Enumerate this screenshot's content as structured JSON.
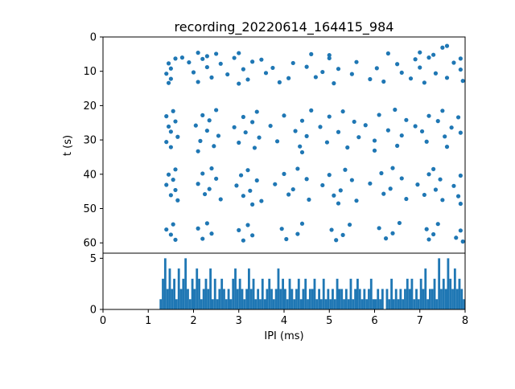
{
  "chart_data": {
    "type": "scatter+histogram",
    "title": "recording_20220614_164415_984",
    "xlabel": "IPI (ms)",
    "xlim": [
      0,
      8
    ],
    "xticks": [
      0,
      1,
      2,
      3,
      4,
      5,
      6,
      7,
      8
    ],
    "point_color": "#1f77b4",
    "axis_color": "#000000",
    "legend": "none",
    "grid": false,
    "scatter": {
      "type": "scatter",
      "ylabel": "t (s)",
      "y_axis_inverted": true,
      "ylim_top_to_bottom": [
        0,
        63
      ],
      "yticks": [
        0,
        10,
        20,
        30,
        40,
        50,
        60
      ],
      "points": [
        [
          7.6,
          2.6
        ],
        [
          7.0,
          4.5
        ],
        [
          7.3,
          5.2
        ],
        [
          5.0,
          5.3
        ],
        [
          2.3,
          5.6
        ],
        [
          2.1,
          4.6
        ],
        [
          2.5,
          4.9
        ],
        [
          3.0,
          4.7
        ],
        [
          4.6,
          5.0
        ],
        [
          6.3,
          4.8
        ],
        [
          7.5,
          3.1
        ],
        [
          1.6,
          6.3
        ],
        [
          1.75,
          6.0
        ],
        [
          2.2,
          6.4
        ],
        [
          2.9,
          6.1
        ],
        [
          3.5,
          6.6
        ],
        [
          5.0,
          6.2
        ],
        [
          6.9,
          6.5
        ],
        [
          7.2,
          6.0
        ],
        [
          7.9,
          6.3
        ],
        [
          1.45,
          7.7
        ],
        [
          1.9,
          7.4
        ],
        [
          2.6,
          7.8
        ],
        [
          3.3,
          7.2
        ],
        [
          4.2,
          7.6
        ],
        [
          5.6,
          7.3
        ],
        [
          6.5,
          7.9
        ],
        [
          7.75,
          7.5
        ],
        [
          1.5,
          9.2
        ],
        [
          2.3,
          8.8
        ],
        [
          3.1,
          9.4
        ],
        [
          3.75,
          9.0
        ],
        [
          4.5,
          8.7
        ],
        [
          5.2,
          9.3
        ],
        [
          6.05,
          9.1
        ],
        [
          7.0,
          8.9
        ],
        [
          7.9,
          9.5
        ],
        [
          1.4,
          10.7
        ],
        [
          2.0,
          10.3
        ],
        [
          2.75,
          10.9
        ],
        [
          3.6,
          10.5
        ],
        [
          4.85,
          10.2
        ],
        [
          5.5,
          10.8
        ],
        [
          6.6,
          10.4
        ],
        [
          7.35,
          10.6
        ],
        [
          1.5,
          12.2
        ],
        [
          2.4,
          11.8
        ],
        [
          3.2,
          12.4
        ],
        [
          4.1,
          12.0
        ],
        [
          4.7,
          11.7
        ],
        [
          5.9,
          12.3
        ],
        [
          6.8,
          12.1
        ],
        [
          7.6,
          11.9
        ],
        [
          1.45,
          13.4
        ],
        [
          2.1,
          13.1
        ],
        [
          3.0,
          13.6
        ],
        [
          3.9,
          13.2
        ],
        [
          5.1,
          13.5
        ],
        [
          6.2,
          13.0
        ],
        [
          7.1,
          13.3
        ],
        [
          7.95,
          12.8
        ],
        [
          1.55,
          21.6
        ],
        [
          2.5,
          21.3
        ],
        [
          3.4,
          21.8
        ],
        [
          4.6,
          21.4
        ],
        [
          5.3,
          21.7
        ],
        [
          6.45,
          21.2
        ],
        [
          7.5,
          21.5
        ],
        [
          1.4,
          23.1
        ],
        [
          2.2,
          22.8
        ],
        [
          3.1,
          23.3
        ],
        [
          4.0,
          22.9
        ],
        [
          5.0,
          23.2
        ],
        [
          6.1,
          22.7
        ],
        [
          7.2,
          23.0
        ],
        [
          7.85,
          23.4
        ],
        [
          1.6,
          24.6
        ],
        [
          2.35,
          24.3
        ],
        [
          3.3,
          24.8
        ],
        [
          4.4,
          24.4
        ],
        [
          5.55,
          24.7
        ],
        [
          6.7,
          24.2
        ],
        [
          7.4,
          24.5
        ],
        [
          1.45,
          26.1
        ],
        [
          2.05,
          25.8
        ],
        [
          2.9,
          26.3
        ],
        [
          3.7,
          25.9
        ],
        [
          4.8,
          26.2
        ],
        [
          5.8,
          25.7
        ],
        [
          6.9,
          26.0
        ],
        [
          7.7,
          26.4
        ],
        [
          1.5,
          27.6
        ],
        [
          2.3,
          27.3
        ],
        [
          3.15,
          27.8
        ],
        [
          4.25,
          27.4
        ],
        [
          5.2,
          27.7
        ],
        [
          6.3,
          27.2
        ],
        [
          7.05,
          27.5
        ],
        [
          7.9,
          27.9
        ],
        [
          1.65,
          29.1
        ],
        [
          2.55,
          28.8
        ],
        [
          3.45,
          29.3
        ],
        [
          4.5,
          28.9
        ],
        [
          5.65,
          29.2
        ],
        [
          6.6,
          28.7
        ],
        [
          7.55,
          29.0
        ],
        [
          1.4,
          30.6
        ],
        [
          2.15,
          30.3
        ],
        [
          3.0,
          30.8
        ],
        [
          3.85,
          30.4
        ],
        [
          4.95,
          30.7
        ],
        [
          6.0,
          30.2
        ],
        [
          7.15,
          30.5
        ],
        [
          1.5,
          32.1
        ],
        [
          2.45,
          31.8
        ],
        [
          3.35,
          32.3
        ],
        [
          4.35,
          31.9
        ],
        [
          5.4,
          32.2
        ],
        [
          6.5,
          31.7
        ],
        [
          7.6,
          32.0
        ],
        [
          2.1,
          33.3
        ],
        [
          4.4,
          33.6
        ],
        [
          6.0,
          33.1
        ],
        [
          1.6,
          38.6
        ],
        [
          2.4,
          38.3
        ],
        [
          3.2,
          38.8
        ],
        [
          4.3,
          38.4
        ],
        [
          5.35,
          38.7
        ],
        [
          6.4,
          38.2
        ],
        [
          7.3,
          38.5
        ],
        [
          1.45,
          40.1
        ],
        [
          2.2,
          39.8
        ],
        [
          3.05,
          40.3
        ],
        [
          4.0,
          39.9
        ],
        [
          5.0,
          40.2
        ],
        [
          6.15,
          39.7
        ],
        [
          7.2,
          40.0
        ],
        [
          7.9,
          40.4
        ],
        [
          1.55,
          41.6
        ],
        [
          2.5,
          41.3
        ],
        [
          3.4,
          41.8
        ],
        [
          4.5,
          41.4
        ],
        [
          5.5,
          41.7
        ],
        [
          6.6,
          41.2
        ],
        [
          7.45,
          41.5
        ],
        [
          1.4,
          43.1
        ],
        [
          2.1,
          42.8
        ],
        [
          2.95,
          43.3
        ],
        [
          3.8,
          42.9
        ],
        [
          4.85,
          43.2
        ],
        [
          5.9,
          42.7
        ],
        [
          6.95,
          43.0
        ],
        [
          7.75,
          43.4
        ],
        [
          1.6,
          44.6
        ],
        [
          2.35,
          44.3
        ],
        [
          3.25,
          44.8
        ],
        [
          4.2,
          44.4
        ],
        [
          5.25,
          44.7
        ],
        [
          6.35,
          44.2
        ],
        [
          7.35,
          44.5
        ],
        [
          1.5,
          46.1
        ],
        [
          2.25,
          45.8
        ],
        [
          3.1,
          46.3
        ],
        [
          4.1,
          45.9
        ],
        [
          5.1,
          46.2
        ],
        [
          6.2,
          45.7
        ],
        [
          7.1,
          46.0
        ],
        [
          7.85,
          46.4
        ],
        [
          1.65,
          47.6
        ],
        [
          2.6,
          47.3
        ],
        [
          3.5,
          47.8
        ],
        [
          4.55,
          47.4
        ],
        [
          5.6,
          47.7
        ],
        [
          6.7,
          47.2
        ],
        [
          7.5,
          47.5
        ],
        [
          3.3,
          48.8
        ],
        [
          5.2,
          48.5
        ],
        [
          7.9,
          48.6
        ],
        [
          1.55,
          54.6
        ],
        [
          2.3,
          54.3
        ],
        [
          3.2,
          54.8
        ],
        [
          4.4,
          54.4
        ],
        [
          5.45,
          54.7
        ],
        [
          6.55,
          54.2
        ],
        [
          7.4,
          54.5
        ],
        [
          1.4,
          56.1
        ],
        [
          2.1,
          55.8
        ],
        [
          3.0,
          56.3
        ],
        [
          3.95,
          55.9
        ],
        [
          5.05,
          56.2
        ],
        [
          6.1,
          55.7
        ],
        [
          7.15,
          56.0
        ],
        [
          7.9,
          56.4
        ],
        [
          1.5,
          57.6
        ],
        [
          2.4,
          57.3
        ],
        [
          3.3,
          57.8
        ],
        [
          4.3,
          57.4
        ],
        [
          5.3,
          57.7
        ],
        [
          6.4,
          57.2
        ],
        [
          7.3,
          57.5
        ],
        [
          1.6,
          59.1
        ],
        [
          2.2,
          58.8
        ],
        [
          3.1,
          59.3
        ],
        [
          4.05,
          58.9
        ],
        [
          5.15,
          59.2
        ],
        [
          6.25,
          58.7
        ],
        [
          7.2,
          59.0
        ],
        [
          7.8,
          58.5
        ],
        [
          7.95,
          59.6
        ]
      ]
    },
    "histogram": {
      "type": "histogram",
      "ylabel": "",
      "ylim": [
        0,
        5.5
      ],
      "yticks": [
        0,
        5
      ],
      "bin_start": 1.0,
      "bin_width": 0.05,
      "counts": [
        0,
        0,
        0,
        0,
        0,
        1,
        3,
        5,
        2,
        4,
        2,
        3,
        1,
        4,
        2,
        3,
        5,
        2,
        1,
        3,
        2,
        4,
        3,
        1,
        2,
        3,
        2,
        4,
        1,
        3,
        1,
        2,
        3,
        2,
        1,
        2,
        1,
        3,
        4,
        2,
        3,
        2,
        1,
        2,
        4,
        2,
        3,
        1,
        2,
        1,
        3,
        1,
        2,
        3,
        2,
        1,
        2,
        4,
        2,
        3,
        2,
        1,
        3,
        2,
        1,
        2,
        3,
        1,
        2,
        3,
        1,
        2,
        2,
        3,
        1,
        2,
        1,
        3,
        1,
        2,
        1,
        2,
        1,
        3,
        2,
        2,
        1,
        2,
        1,
        3,
        1,
        2,
        3,
        2,
        1,
        2,
        1,
        2,
        3,
        1,
        1,
        2,
        1,
        2,
        0,
        2,
        1,
        3,
        1,
        2,
        1,
        2,
        1,
        2,
        3,
        2,
        3,
        1,
        2,
        1,
        3,
        2,
        4,
        1,
        2,
        2,
        3,
        1,
        5,
        2,
        3,
        2,
        5,
        3,
        2,
        4,
        2,
        3,
        2,
        1
      ]
    }
  }
}
